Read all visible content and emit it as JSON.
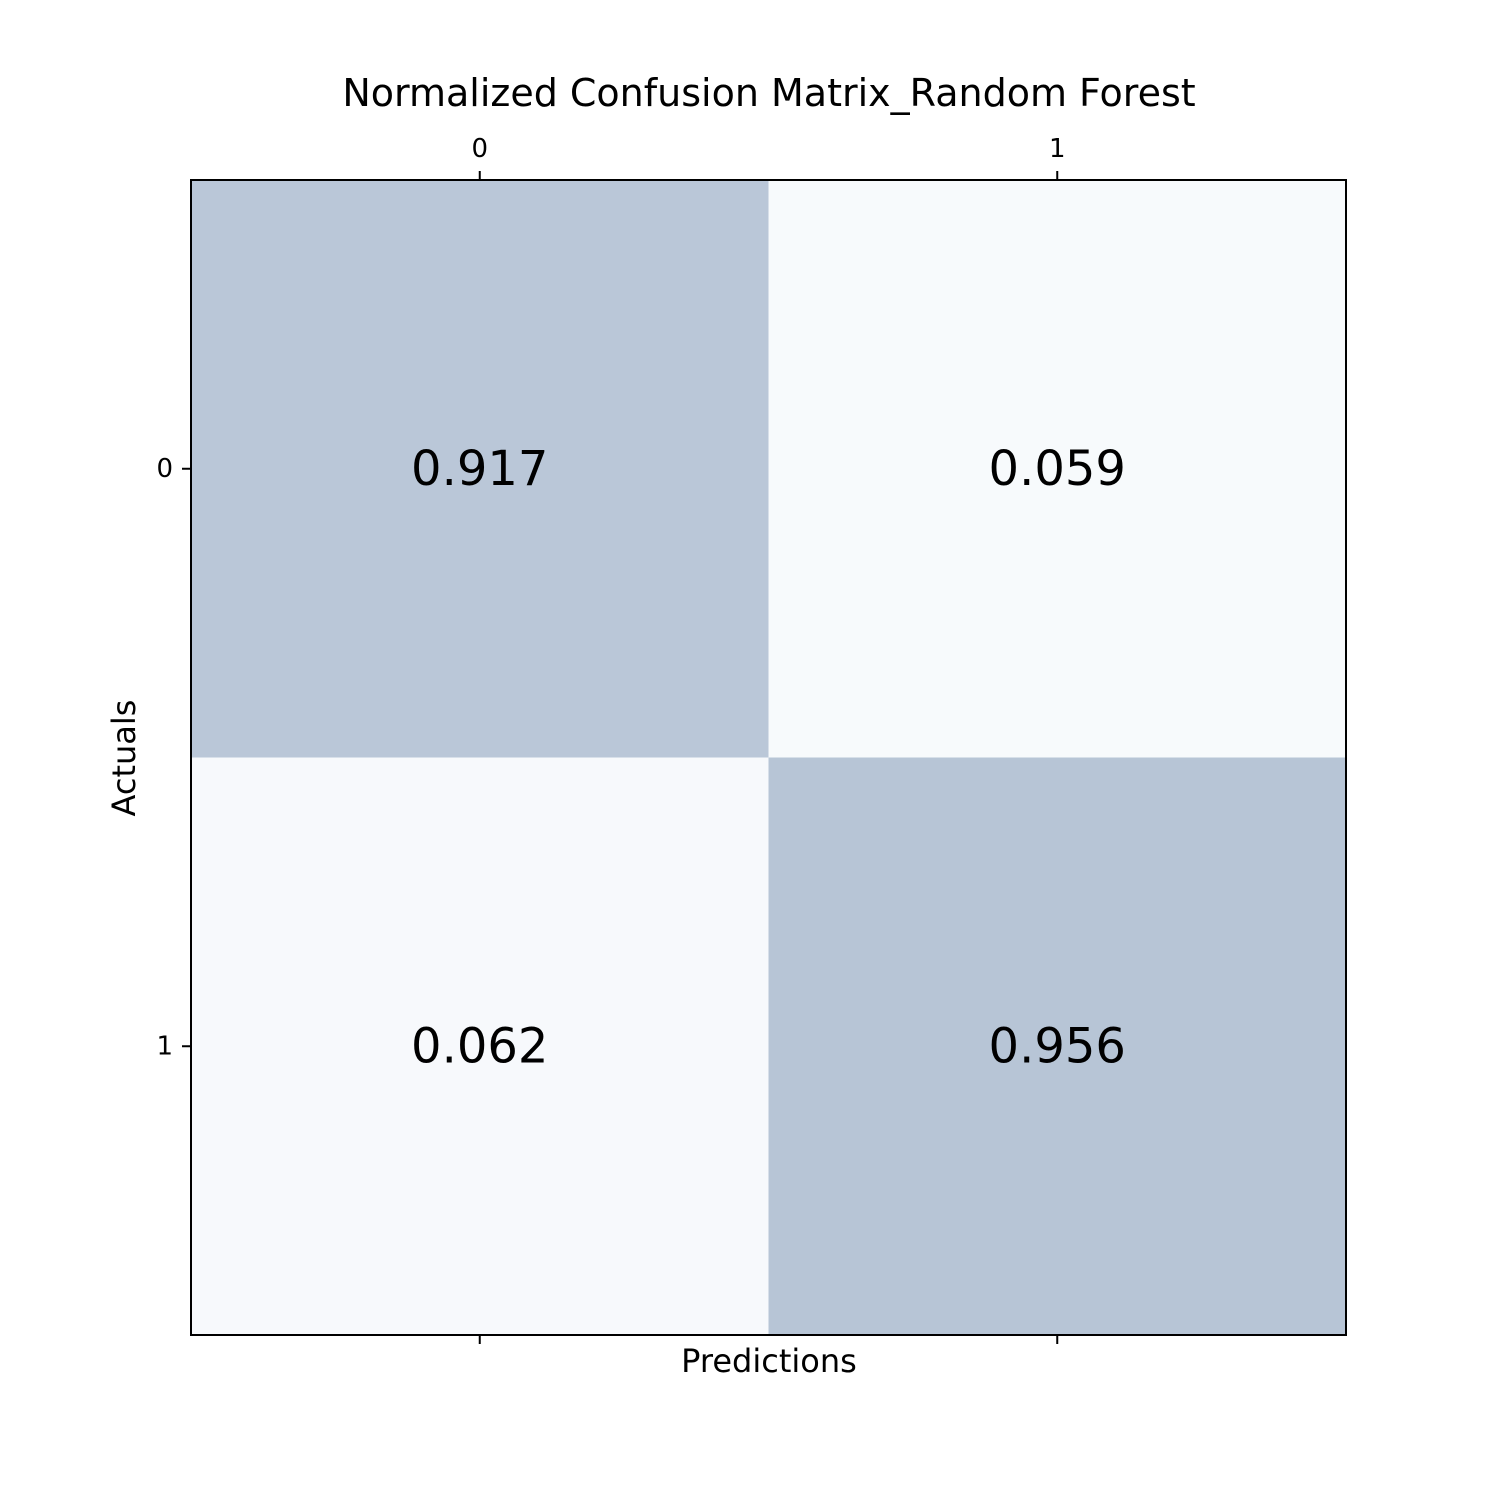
{
  "chart_data": {
    "type": "heatmap",
    "title": "Normalized Confusion Matrix_Random Forest",
    "xlabel": "Predictions",
    "ylabel": "Actuals",
    "x_categories": [
      "0",
      "1"
    ],
    "y_categories": [
      "0",
      "1"
    ],
    "values": [
      [
        0.917,
        0.059
      ],
      [
        0.062,
        0.956
      ]
    ],
    "value_labels": [
      [
        "0.917",
        "0.059"
      ],
      [
        "0.062",
        "0.956"
      ]
    ],
    "colormap": "Blues",
    "x_tick_position": "top",
    "grid": false
  }
}
